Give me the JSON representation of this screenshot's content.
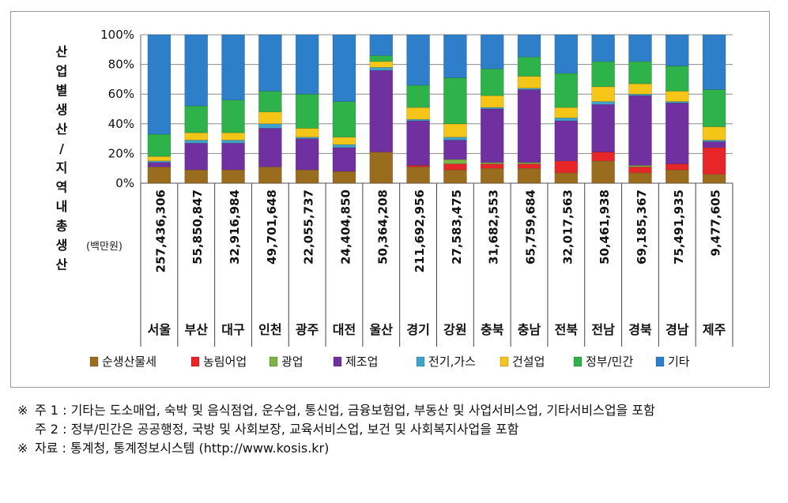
{
  "chart_data": {
    "type": "bar",
    "stacked": true,
    "normalized": true,
    "ylabel": "산업별생산/지역내총생산",
    "unit_label": "(백만원)",
    "yticks": [
      "0%",
      "20%",
      "40%",
      "60%",
      "80%",
      "100%"
    ],
    "ylim": [
      0,
      100
    ],
    "grid": true,
    "legend_position": "bottom",
    "categories": [
      "서울",
      "부산",
      "대구",
      "인천",
      "광주",
      "대전",
      "울산",
      "경기",
      "강원",
      "충북",
      "충남",
      "전북",
      "전남",
      "경북",
      "경남",
      "제주"
    ],
    "totals": [
      "257,436,306",
      "55,850,847",
      "32,916,984",
      "49,701,648",
      "22,055,737",
      "24,404,850",
      "50,364,208",
      "211,692,956",
      "27,583,475",
      "31,682,553",
      "65,759,684",
      "32,017,563",
      "50,461,938",
      "69,185,367",
      "75,491,935",
      "9,477,605"
    ],
    "series": [
      {
        "name": "순생산물세",
        "color": "#9a6d1e",
        "values": [
          11,
          9,
          9,
          11,
          9,
          8,
          21,
          11,
          9,
          10,
          10,
          7,
          15,
          7,
          9,
          6
        ]
      },
      {
        "name": "농림어업",
        "color": "#e8262a",
        "values": [
          0,
          0,
          0,
          0,
          0,
          0,
          0,
          1,
          4,
          3,
          3,
          8,
          6,
          4,
          4,
          18
        ]
      },
      {
        "name": "광업",
        "color": "#7cb342",
        "values": [
          0,
          0,
          0,
          0,
          0,
          0,
          0,
          0,
          3,
          1,
          1,
          0,
          0,
          1,
          0,
          0
        ]
      },
      {
        "name": "제조업",
        "color": "#7030a0",
        "values": [
          3,
          18,
          18,
          26,
          21,
          16,
          55,
          30,
          13,
          36,
          49,
          27,
          32,
          47,
          41,
          4
        ]
      },
      {
        "name": "전기,가스",
        "color": "#3ea3c8",
        "values": [
          1,
          2,
          2,
          3,
          1,
          2,
          2,
          1,
          2,
          1,
          1,
          2,
          2,
          1,
          1,
          1
        ]
      },
      {
        "name": "건설업",
        "color": "#f5c518",
        "values": [
          3,
          5,
          5,
          8,
          6,
          5,
          4,
          8,
          9,
          8,
          8,
          7,
          10,
          7,
          7,
          9
        ]
      },
      {
        "name": "정부/민간",
        "color": "#2eb24a",
        "values": [
          15,
          18,
          22,
          14,
          23,
          24,
          4,
          15,
          31,
          18,
          13,
          23,
          17,
          15,
          17,
          25
        ]
      },
      {
        "name": "기타",
        "color": "#2e7fc9",
        "values": [
          67,
          48,
          44,
          38,
          40,
          45,
          14,
          34,
          29,
          23,
          15,
          26,
          18,
          18,
          21,
          37
        ]
      }
    ]
  },
  "notes": [
    {
      "mark": "※",
      "label": "주 1 : ",
      "text": "기타는 도소매업, 숙박 및 음식점업, 운수업, 통신업, 금융보험업, 부동산 및 사업서비스업, 기타서비스업을 포함"
    },
    {
      "mark": "",
      "label": "주 2 : ",
      "text": "정부/민간은 공공행정, 국방 및 사회보장, 교육서비스업, 보건 및 사회복지사업을 포함"
    },
    {
      "mark": "※",
      "label": "자료 : ",
      "text": "통계청, 통계정보시스템 (http://www.kosis.kr)"
    }
  ]
}
